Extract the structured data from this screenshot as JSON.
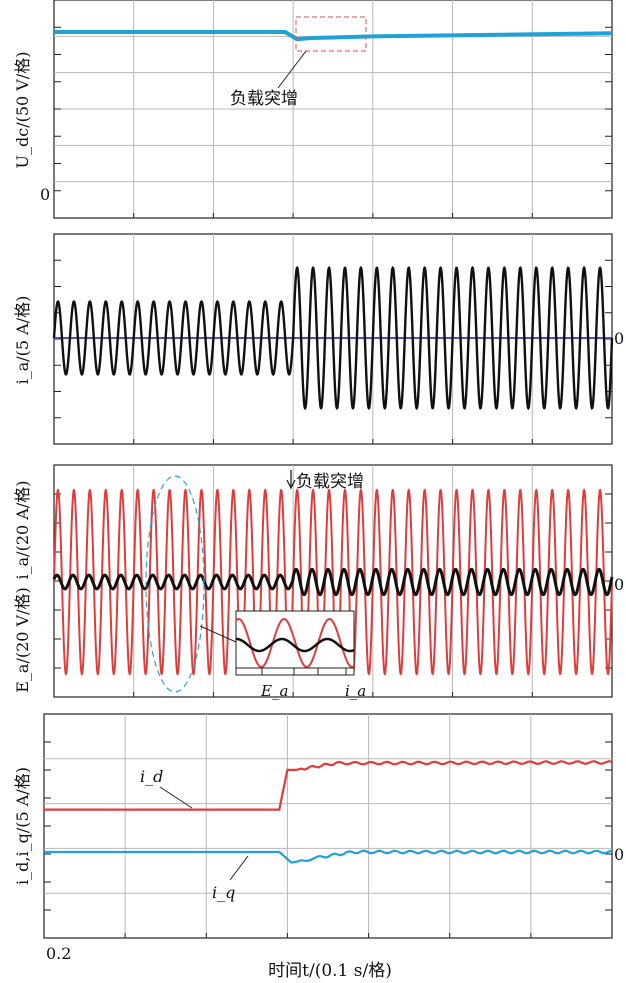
{
  "chart_data": [
    {
      "type": "line",
      "ylabel": "U_dc/(50 V/格)",
      "y_tick_label": "0",
      "annotation": "负载突增",
      "colors": {
        "series": "#1fa3d6",
        "box": "#e05050"
      },
      "series": [
        {
          "x": [
            0.2,
            0.49,
            0.505,
            0.52,
            0.6,
            0.9
          ],
          "y": [
            4.05,
            4.05,
            3.87,
            3.9,
            3.94,
            4.02
          ]
        }
      ]
    },
    {
      "type": "line",
      "ylabel": "i_a/(5 A/格)",
      "right_tick_label": "0",
      "colors": {
        "series": "#111111",
        "zero_line": "#5050b0"
      },
      "series": [
        {
          "freq_hz": 50,
          "amplitude_before_div": 1.4,
          "amplitude_after_div": 2.7,
          "step_time_s": 0.5
        }
      ]
    },
    {
      "type": "line",
      "ylabel_current": "i_a/(20 A/格)",
      "ylabel_voltage": "E_a/(20 V/格)",
      "right_tick_label": "0",
      "annotation": "负载突增",
      "colors": {
        "voltage": "#e03c3c",
        "current": "#111111",
        "ellipse": "#2aa6cf"
      },
      "inset": {
        "label_voltage": "E_a",
        "label_current": "i_a"
      },
      "series": [
        {
          "freq_hz": 50,
          "amplitude_div": 4.0
        },
        {
          "freq_hz": 50,
          "amplitude_before_div": 0.3,
          "amplitude_after_div": 0.55,
          "step_time_s": 0.5
        }
      ]
    },
    {
      "type": "line",
      "ylabel": "i_d,i_q/(5 A/格)",
      "right_tick_label": "0",
      "series": [
        {
          "name": "i_d",
          "color": "#e03c3c",
          "x": [
            0.2,
            0.49,
            0.5,
            0.51,
            0.56,
            0.9
          ],
          "y": [
            1.6,
            1.6,
            3.1,
            3.1,
            3.35,
            3.38
          ]
        },
        {
          "name": "i_q",
          "color": "#1fa3d6",
          "x": [
            0.2,
            0.49,
            0.505,
            0.54,
            0.58,
            0.9
          ],
          "y": [
            0.0,
            0.0,
            -0.4,
            -0.2,
            0.0,
            0.0
          ]
        }
      ]
    }
  ],
  "xaxis": {
    "start_label": "0.2",
    "label": "时间t/(0.1 s/格)"
  }
}
